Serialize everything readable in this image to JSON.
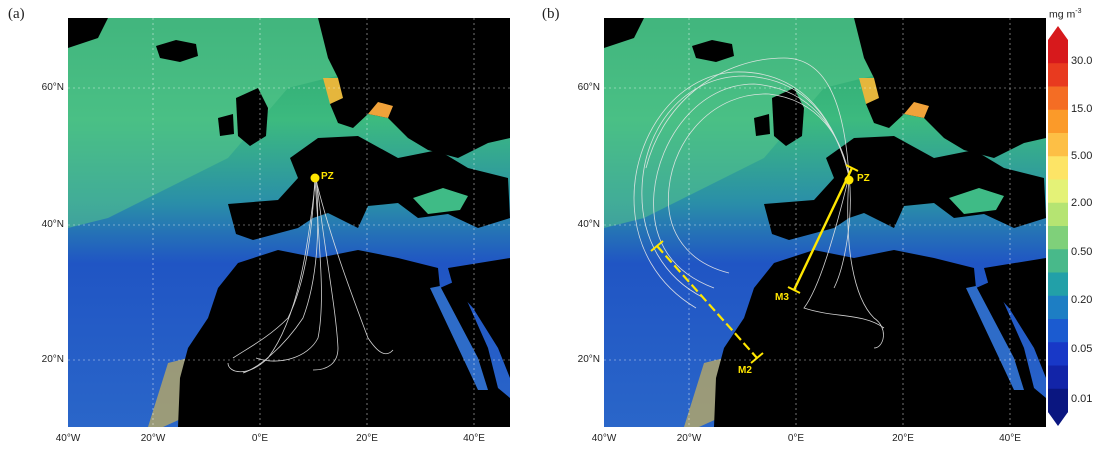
{
  "panels": [
    {
      "label": "(a)",
      "site": "PZ",
      "tracks": []
    },
    {
      "label": "(b)",
      "site": "PZ",
      "tracks": [
        "M2",
        "M3"
      ]
    }
  ],
  "lat_ticks": [
    "60°N",
    "40°N",
    "20°N"
  ],
  "lon_ticks": [
    "40°W",
    "20°W",
    "0°E",
    "20°E",
    "40°E"
  ],
  "colorbar": {
    "unit": "mg m",
    "unit_exp": "-3",
    "labels": [
      "30.0",
      "15.0",
      "5.00",
      "2.00",
      "0.50",
      "0.20",
      "0.05",
      "0.01"
    ],
    "colors": [
      "#d7191c",
      "#e83a1f",
      "#f46d24",
      "#fb9a29",
      "#fdbf45",
      "#fde466",
      "#e4f277",
      "#b5e472",
      "#7fd07a",
      "#48b98a",
      "#22a0a8",
      "#1d7ec4",
      "#1b5bd0",
      "#1838c7",
      "#1224a8",
      "#0a1680"
    ]
  },
  "colors": {
    "ocean_open": "#2a5fc8",
    "ocean_green": "#4fc08a",
    "land": "#000000",
    "track_marker": "#ffe600",
    "trajectory": "#e8e8e8"
  }
}
